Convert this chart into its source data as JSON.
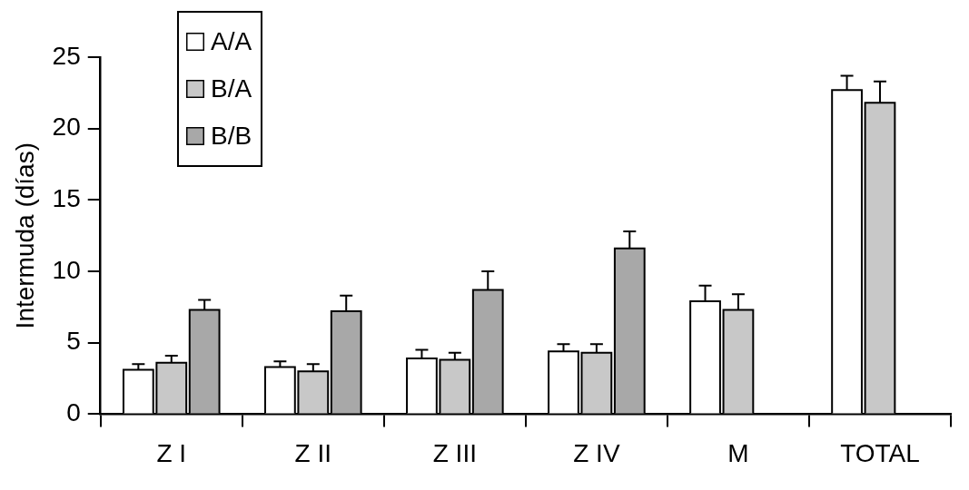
{
  "chart_data": {
    "type": "bar",
    "ylabel": "Intermuda (días)",
    "categories": [
      "Z I",
      "Z II",
      "Z III",
      "Z IV",
      "M",
      "TOTAL"
    ],
    "series": [
      {
        "name": "A/A",
        "color": "#ffffff",
        "values": [
          3.1,
          3.3,
          3.9,
          4.4,
          7.9,
          22.7
        ],
        "errors": [
          [
            3.1,
            3.5
          ],
          [
            3.3,
            3.7
          ],
          [
            3.9,
            4.5
          ],
          [
            4.4,
            4.9
          ],
          [
            7.9,
            9.0
          ],
          [
            22.7,
            23.7
          ]
        ]
      },
      {
        "name": "B/A",
        "color": "#c8c8c8",
        "values": [
          3.6,
          3.0,
          3.8,
          4.3,
          7.3,
          21.8
        ],
        "errors": [
          [
            3.6,
            4.1
          ],
          [
            3.0,
            3.5
          ],
          [
            3.8,
            4.3
          ],
          [
            4.3,
            4.9
          ],
          [
            7.3,
            8.4
          ],
          [
            21.8,
            23.3
          ]
        ]
      },
      {
        "name": "B/B",
        "color": "#a8a8a8",
        "values": [
          7.3,
          7.2,
          8.7,
          11.6,
          null,
          null
        ],
        "errors": [
          [
            7.3,
            8.0
          ],
          [
            7.2,
            8.3
          ],
          [
            8.7,
            10.0
          ],
          [
            11.6,
            12.8
          ],
          null,
          null
        ]
      }
    ],
    "ylim": [
      0,
      25
    ],
    "yticks": [
      0,
      5,
      10,
      15,
      20,
      25
    ],
    "grid": false,
    "legend": "top left"
  }
}
